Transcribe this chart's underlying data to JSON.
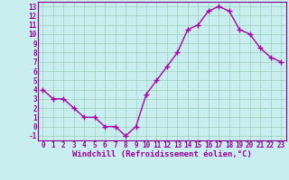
{
  "x": [
    0,
    1,
    2,
    3,
    4,
    5,
    6,
    7,
    8,
    9,
    10,
    11,
    12,
    13,
    14,
    15,
    16,
    17,
    18,
    19,
    20,
    21,
    22,
    23
  ],
  "y": [
    4.0,
    3.0,
    3.0,
    2.0,
    1.0,
    1.0,
    0.0,
    0.0,
    -1.0,
    0.0,
    3.5,
    5.0,
    6.5,
    8.0,
    10.5,
    11.0,
    12.5,
    13.0,
    12.5,
    10.5,
    10.0,
    8.5,
    7.5,
    7.0
  ],
  "line_color": "#aa00aa",
  "marker": "+",
  "marker_size": 4,
  "marker_linewidth": 1.0,
  "xlabel": "Windchill (Refroidissement éolien,°C)",
  "xlabel_fontsize": 6.5,
  "tick_fontsize": 5.5,
  "ylim": [
    -1.5,
    13.5
  ],
  "xlim": [
    -0.5,
    23.5
  ],
  "yticks": [
    -1,
    0,
    1,
    2,
    3,
    4,
    5,
    6,
    7,
    8,
    9,
    10,
    11,
    12,
    13
  ],
  "xticks": [
    0,
    1,
    2,
    3,
    4,
    5,
    6,
    7,
    8,
    9,
    10,
    11,
    12,
    13,
    14,
    15,
    16,
    17,
    18,
    19,
    20,
    21,
    22,
    23
  ],
  "background_color": "#c8eef0",
  "grid_color": "#9dcfb8",
  "tick_color": "#990099",
  "label_color": "#990099",
  "line_width": 1.0,
  "spine_color": "#880088"
}
